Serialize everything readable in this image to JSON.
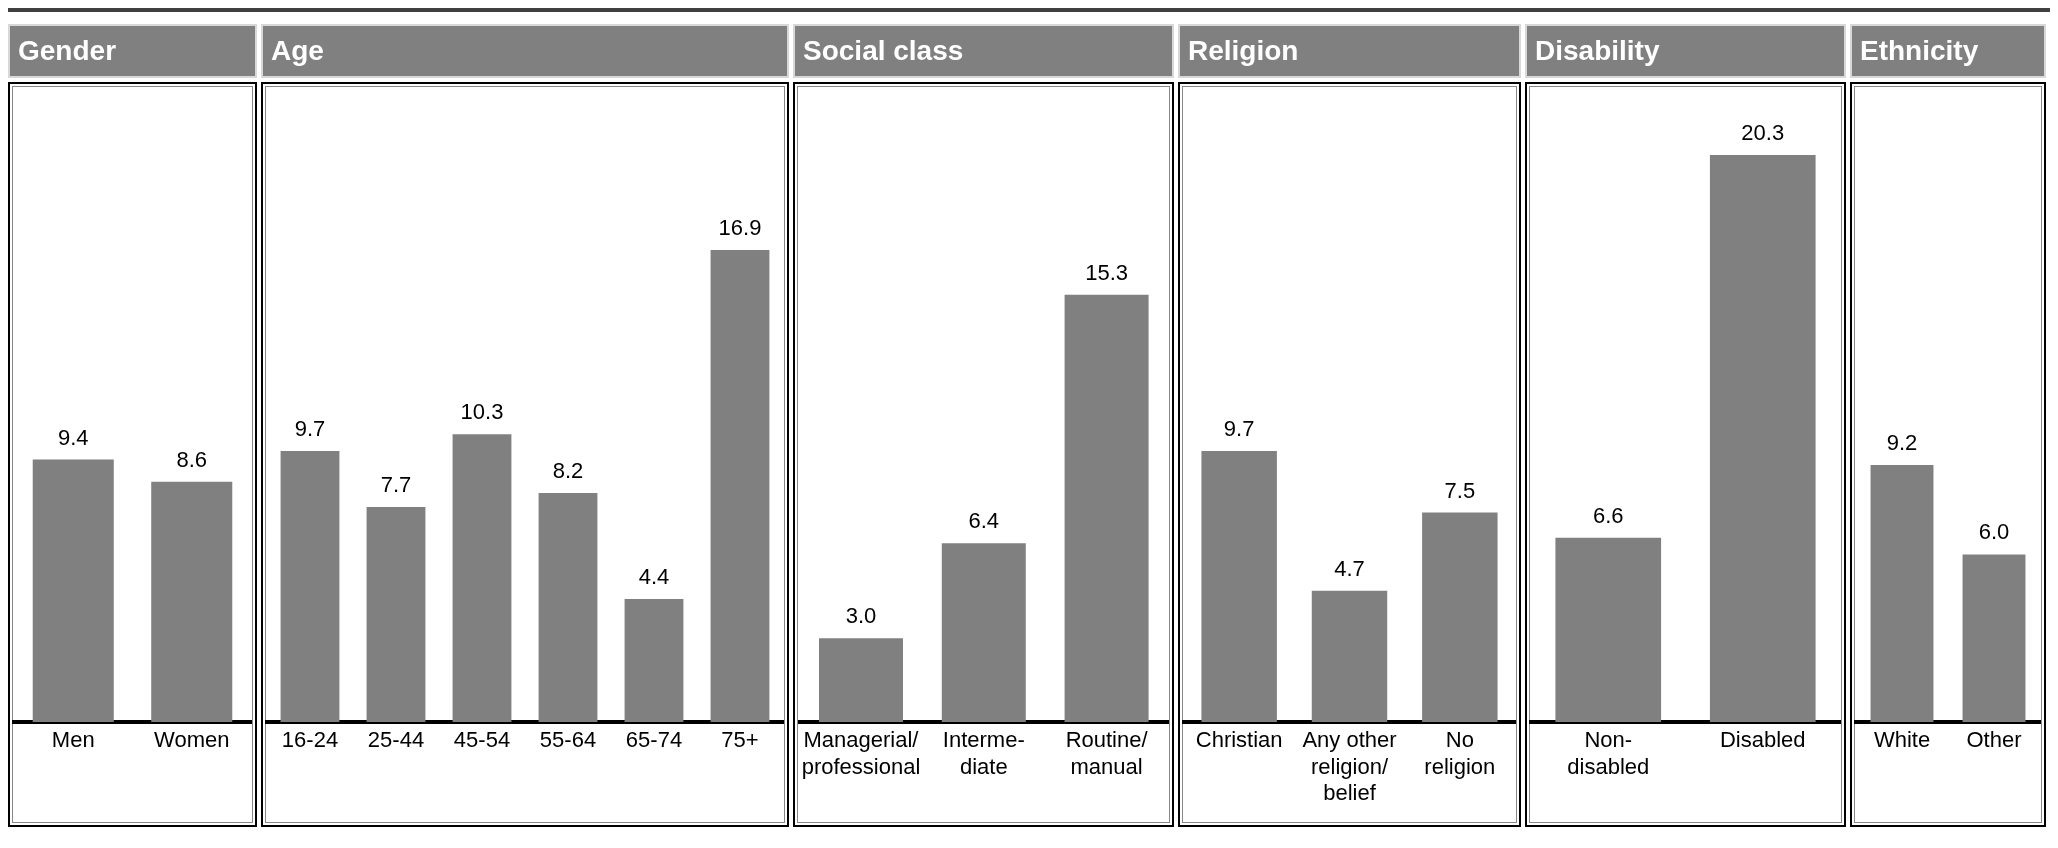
{
  "chart_data": [
    {
      "type": "bar",
      "title": "Gender",
      "categories": [
        "Men",
        "Women"
      ],
      "values": [
        9.4,
        8.6
      ],
      "color": "#808080",
      "data_labels": true
    },
    {
      "type": "bar",
      "title": "Age",
      "categories": [
        "16-24",
        "25-44",
        "45-54",
        "55-64",
        "65-74",
        "75+"
      ],
      "values": [
        9.7,
        7.7,
        10.3,
        8.2,
        4.4,
        16.9
      ],
      "color": "#808080",
      "data_labels": true
    },
    {
      "type": "bar",
      "title": "Social class",
      "categories": [
        "Managerial/\nprofessional",
        "Interme-\ndiate",
        "Routine/\nmanual"
      ],
      "values": [
        3.0,
        6.4,
        15.3
      ],
      "color": "#808080",
      "value_labels": [
        "3.0",
        "6.4",
        "15.3"
      ]
    },
    {
      "type": "bar",
      "title": "Religion",
      "categories": [
        "Christian",
        "Any other\nreligion/\nbelief",
        "No\nreligion"
      ],
      "values": [
        9.7,
        4.7,
        7.5
      ],
      "color": "#808080",
      "data_labels": true
    },
    {
      "type": "bar",
      "title": "Disability",
      "categories": [
        "Non-\ndisabled",
        "Disabled"
      ],
      "values": [
        6.6,
        20.3
      ],
      "color": "#808080",
      "data_labels": true
    },
    {
      "type": "bar",
      "title": "Ethnicity",
      "categories": [
        "White",
        "Other"
      ],
      "values": [
        9.2,
        6.0
      ],
      "color": "#808080",
      "value_labels": [
        "9.2",
        "6.0"
      ]
    }
  ]
}
